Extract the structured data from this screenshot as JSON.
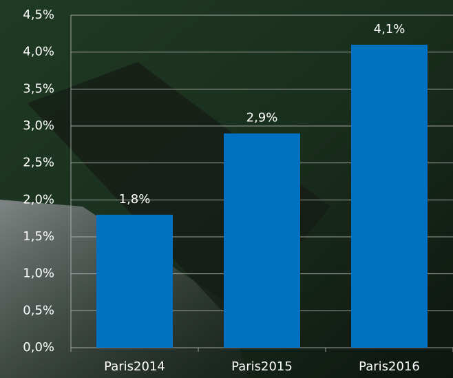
{
  "chart_data": {
    "type": "bar",
    "categories": [
      "Paris2014",
      "Paris2015",
      "Paris2016"
    ],
    "values": [
      1.8,
      2.9,
      4.1
    ],
    "value_labels": [
      "1,8%",
      "2,9%",
      "4,1%"
    ],
    "color": "#0070c0",
    "ylim": [
      0,
      4.5
    ],
    "yticks": [
      {
        "value": 0,
        "label": "0,0%"
      },
      {
        "value": 0.5,
        "label": "0,5%"
      },
      {
        "value": 1,
        "label": "1,0%"
      },
      {
        "value": 1.5,
        "label": "1,5%"
      },
      {
        "value": 2,
        "label": "2,0%"
      },
      {
        "value": 2.5,
        "label": "2,5%"
      },
      {
        "value": 3,
        "label": "3,0%"
      },
      {
        "value": 3.5,
        "label": "3,5%"
      },
      {
        "value": 4,
        "label": "4,0%"
      },
      {
        "value": 4.5,
        "label": "4,5%"
      }
    ],
    "grid": true
  }
}
